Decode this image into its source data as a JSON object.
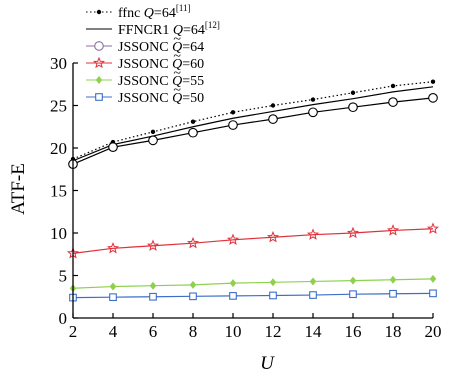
{
  "chart_data": {
    "type": "line",
    "xlabel": "U",
    "ylabel": "ATF-E",
    "xlim": [
      2,
      20
    ],
    "ylim": [
      0,
      30
    ],
    "x_ticks": [
      2,
      4,
      6,
      8,
      10,
      12,
      14,
      16,
      18,
      20
    ],
    "y_ticks": [
      0,
      5,
      10,
      15,
      20,
      25,
      30
    ],
    "grid": false,
    "legend_position": "top-left",
    "series": [
      {
        "key": "ffnc",
        "legend": {
          "pre": "ffnc ",
          "q": "Q",
          "post": "=64",
          "sup": "[11]"
        },
        "color": "#000000",
        "line_style": "dotted",
        "marker": "dot",
        "x": [
          2,
          4,
          6,
          8,
          10,
          12,
          14,
          16,
          18,
          20
        ],
        "values": [
          18.7,
          20.7,
          21.9,
          23.1,
          24.2,
          25.0,
          25.7,
          26.5,
          27.3,
          27.8
        ]
      },
      {
        "key": "ffncr1",
        "legend": {
          "pre": "FFNCR1 ",
          "q": "Q",
          "post": "=64",
          "sup": "[12]"
        },
        "color": "#000000",
        "line_style": "solid",
        "marker": "none",
        "x": [
          2,
          4,
          6,
          8,
          10,
          12,
          14,
          16,
          18,
          20
        ],
        "values": [
          18.5,
          20.4,
          21.4,
          22.5,
          23.5,
          24.3,
          25.1,
          25.8,
          26.6,
          27.2
        ]
      },
      {
        "key": "jssonc64",
        "legend": {
          "pre": "JSSONC ",
          "q": "Q",
          "post": "=64",
          "sup": ""
        },
        "color": "#000000",
        "legend_color": "#8a6f9c",
        "line_style": "solid",
        "marker": "circle",
        "x": [
          2,
          4,
          6,
          8,
          10,
          12,
          14,
          16,
          18,
          20
        ],
        "values": [
          18.1,
          20.1,
          20.9,
          21.8,
          22.7,
          23.4,
          24.2,
          24.8,
          25.4,
          25.9
        ]
      },
      {
        "key": "jssonc60",
        "legend": {
          "pre": "JSSONC ",
          "q": "Q",
          "post": "=60",
          "sup": ""
        },
        "color": "#e0303a",
        "line_style": "solid",
        "marker": "star",
        "x": [
          2,
          4,
          6,
          8,
          10,
          12,
          14,
          16,
          18,
          20
        ],
        "values": [
          7.6,
          8.2,
          8.5,
          8.8,
          9.2,
          9.5,
          9.8,
          10.0,
          10.3,
          10.5
        ]
      },
      {
        "key": "jssonc55",
        "legend": {
          "pre": "JSSONC ",
          "q": "Q",
          "post": "=55",
          "sup": ""
        },
        "color": "#8fd14f",
        "line_style": "solid",
        "marker": "diamond",
        "x": [
          2,
          4,
          6,
          8,
          10,
          12,
          14,
          16,
          18,
          20
        ],
        "values": [
          3.5,
          3.7,
          3.8,
          3.9,
          4.1,
          4.2,
          4.3,
          4.4,
          4.5,
          4.6
        ]
      },
      {
        "key": "jssonc50",
        "legend": {
          "pre": "JSSONC ",
          "q": "Q",
          "post": "=50",
          "sup": ""
        },
        "color": "#3d6fc9",
        "line_style": "solid",
        "marker": "square",
        "x": [
          2,
          4,
          6,
          8,
          10,
          12,
          14,
          16,
          18,
          20
        ],
        "values": [
          2.4,
          2.45,
          2.5,
          2.55,
          2.6,
          2.65,
          2.7,
          2.8,
          2.85,
          2.9
        ]
      }
    ]
  }
}
